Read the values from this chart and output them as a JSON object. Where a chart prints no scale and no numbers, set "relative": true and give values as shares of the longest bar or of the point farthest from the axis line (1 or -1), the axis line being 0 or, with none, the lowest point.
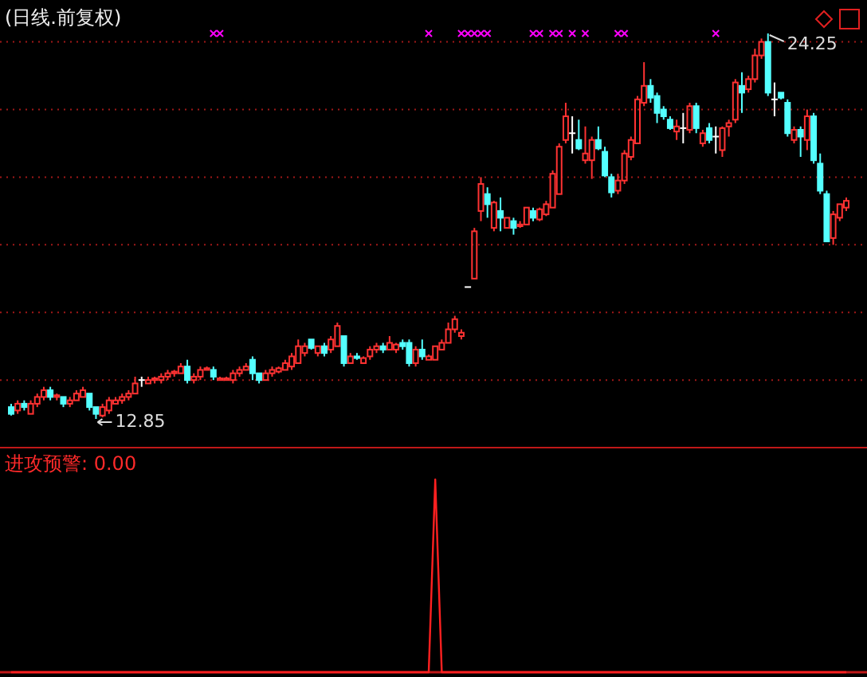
{
  "chart_data": [
    {
      "type": "candlestick",
      "title": "(日线.前复权)",
      "categories": [
        null,
        null,
        null,
        null,
        null,
        null,
        null,
        null,
        null,
        null,
        null,
        null,
        null,
        null,
        null,
        null,
        null,
        null,
        null,
        null,
        null,
        null,
        null,
        null,
        null,
        null,
        null,
        null,
        null,
        null,
        null,
        null,
        null,
        null,
        null,
        null,
        null,
        null,
        null,
        null,
        null,
        null,
        null,
        null,
        null,
        null,
        null,
        null,
        null,
        null,
        null,
        null,
        null,
        null,
        null,
        null,
        null,
        null,
        null,
        null,
        null,
        null,
        null,
        null,
        null,
        null,
        null,
        null,
        null,
        null,
        null,
        null,
        null,
        null,
        null,
        null,
        null,
        null,
        null,
        null,
        null,
        null,
        null,
        null,
        null,
        null,
        null,
        null,
        null,
        null,
        null,
        null,
        null,
        null,
        null,
        null,
        null,
        null,
        null,
        null,
        null,
        null,
        null,
        null,
        null,
        null,
        null,
        null,
        null,
        null,
        null,
        null,
        null,
        null,
        null,
        null,
        null,
        null,
        null,
        null,
        null,
        null,
        null,
        null,
        null,
        null,
        null,
        null,
        null
      ],
      "ohlc": [
        [
          13.2,
          13.3,
          12.95,
          13.0
        ],
        [
          13.1,
          13.4,
          13.0,
          13.3
        ],
        [
          13.3,
          13.4,
          13.1,
          13.2
        ],
        [
          13.0,
          13.4,
          13.0,
          13.3
        ],
        [
          13.3,
          13.6,
          13.2,
          13.5
        ],
        [
          13.5,
          13.8,
          13.4,
          13.7
        ],
        [
          13.7,
          13.8,
          13.4,
          13.5
        ],
        [
          13.5,
          13.6,
          13.4,
          13.55
        ],
        [
          13.5,
          13.5,
          13.2,
          13.3
        ],
        [
          13.3,
          13.5,
          13.2,
          13.4
        ],
        [
          13.4,
          13.7,
          13.4,
          13.6
        ],
        [
          13.5,
          13.8,
          13.5,
          13.7
        ],
        [
          13.6,
          13.6,
          13.1,
          13.2
        ],
        [
          13.2,
          13.2,
          12.85,
          13.0
        ],
        [
          12.95,
          13.3,
          12.9,
          13.2
        ],
        [
          13.1,
          13.5,
          13.0,
          13.4
        ],
        [
          13.3,
          13.5,
          13.3,
          13.4
        ],
        [
          13.4,
          13.6,
          13.3,
          13.5
        ],
        [
          13.5,
          13.7,
          13.4,
          13.6
        ],
        [
          13.6,
          14.1,
          13.6,
          13.9
        ],
        [
          14.0,
          14.1,
          13.8,
          14.0
        ],
        [
          13.9,
          14.1,
          13.9,
          14.0
        ],
        [
          14.0,
          14.1,
          13.9,
          14.05
        ],
        [
          14.0,
          14.2,
          13.9,
          14.1
        ],
        [
          14.1,
          14.3,
          14.0,
          14.2
        ],
        [
          14.2,
          14.3,
          14.1,
          14.25
        ],
        [
          14.2,
          14.5,
          14.2,
          14.4
        ],
        [
          14.4,
          14.6,
          13.9,
          14.0
        ],
        [
          14.0,
          14.2,
          13.9,
          14.1
        ],
        [
          14.1,
          14.4,
          14.0,
          14.3
        ],
        [
          14.3,
          14.4,
          14.3,
          14.35
        ],
        [
          14.3,
          14.4,
          14.0,
          14.1
        ],
        [
          14.0,
          14.1,
          14.0,
          14.05
        ],
        [
          14.0,
          14.1,
          14.0,
          14.05
        ],
        [
          14.0,
          14.3,
          13.9,
          14.2
        ],
        [
          14.2,
          14.4,
          14.1,
          14.3
        ],
        [
          14.3,
          14.5,
          14.3,
          14.4
        ],
        [
          14.6,
          14.7,
          14.0,
          14.2
        ],
        [
          14.2,
          14.2,
          13.9,
          14.0
        ],
        [
          14.0,
          14.3,
          14.0,
          14.2
        ],
        [
          14.2,
          14.4,
          14.1,
          14.3
        ],
        [
          14.25,
          14.4,
          14.2,
          14.35
        ],
        [
          14.3,
          14.6,
          14.3,
          14.5
        ],
        [
          14.4,
          14.8,
          14.3,
          14.7
        ],
        [
          14.5,
          15.2,
          14.5,
          15.0
        ],
        [
          14.8,
          15.1,
          14.7,
          15.0
        ],
        [
          15.2,
          15.2,
          14.9,
          14.95
        ],
        [
          14.8,
          15.0,
          14.7,
          15.0
        ],
        [
          15.0,
          15.1,
          14.7,
          14.8
        ],
        [
          14.9,
          15.3,
          14.8,
          15.2
        ],
        [
          15.0,
          15.7,
          15.0,
          15.6
        ],
        [
          15.3,
          15.3,
          14.4,
          14.5
        ],
        [
          14.5,
          14.8,
          14.5,
          14.7
        ],
        [
          14.7,
          14.8,
          14.6,
          14.65
        ],
        [
          14.5,
          14.7,
          14.5,
          14.65
        ],
        [
          14.7,
          15.0,
          14.6,
          14.9
        ],
        [
          14.9,
          15.1,
          14.8,
          15.0
        ],
        [
          15.0,
          15.1,
          14.8,
          14.9
        ],
        [
          14.9,
          15.3,
          14.9,
          15.1
        ],
        [
          14.9,
          15.1,
          14.8,
          15.05
        ],
        [
          15.1,
          15.2,
          14.9,
          15.0
        ],
        [
          15.1,
          15.2,
          14.4,
          14.5
        ],
        [
          14.5,
          15.0,
          14.4,
          14.9
        ],
        [
          14.9,
          15.2,
          14.6,
          14.7
        ],
        [
          14.6,
          14.75,
          14.6,
          14.7
        ],
        [
          14.6,
          15.0,
          14.6,
          15.0
        ],
        [
          14.9,
          15.2,
          14.9,
          15.1
        ],
        [
          15.1,
          15.7,
          15.1,
          15.5
        ],
        [
          15.5,
          15.9,
          15.4,
          15.8
        ],
        [
          15.3,
          15.5,
          15.2,
          15.4
        ],
        [
          16.75,
          16.75,
          16.75,
          16.75
        ],
        [
          17.0,
          18.5,
          17.0,
          18.4
        ],
        [
          19.0,
          20.0,
          18.7,
          19.8
        ],
        [
          19.5,
          19.7,
          18.8,
          19.2
        ],
        [
          18.5,
          19.3,
          18.4,
          19.25
        ],
        [
          19.0,
          19.4,
          18.4,
          18.8
        ],
        [
          18.5,
          18.8,
          18.5,
          18.8
        ],
        [
          18.7,
          18.8,
          18.3,
          18.5
        ],
        [
          18.55,
          18.7,
          18.5,
          18.6
        ],
        [
          18.6,
          19.1,
          18.6,
          19.1
        ],
        [
          19.0,
          19.1,
          18.7,
          18.8
        ],
        [
          18.75,
          19.1,
          18.7,
          19.05
        ],
        [
          18.9,
          19.3,
          18.85,
          19.2
        ],
        [
          19.1,
          20.2,
          19.1,
          20.1
        ],
        [
          19.5,
          21.0,
          19.5,
          20.9
        ],
        [
          21.1,
          22.2,
          21.0,
          21.8
        ],
        [
          21.3,
          21.8,
          20.7,
          21.3
        ],
        [
          21.1,
          21.7,
          20.8,
          20.85
        ],
        [
          20.5,
          21.5,
          20.4,
          20.7
        ],
        [
          20.5,
          21.2,
          19.95,
          21.1
        ],
        [
          21.1,
          21.5,
          20.8,
          20.85
        ],
        [
          20.75,
          20.9,
          20.0,
          20.05
        ],
        [
          20.0,
          20.1,
          19.4,
          19.55
        ],
        [
          19.6,
          20.1,
          19.5,
          19.9
        ],
        [
          19.9,
          20.8,
          19.8,
          20.7
        ],
        [
          20.6,
          21.2,
          20.5,
          21.1
        ],
        [
          21.0,
          22.4,
          21.0,
          22.3
        ],
        [
          22.2,
          23.4,
          22.1,
          22.7
        ],
        [
          22.7,
          22.9,
          22.2,
          22.35
        ],
        [
          22.4,
          22.5,
          21.6,
          21.9
        ],
        [
          22.0,
          22.1,
          21.7,
          21.8
        ],
        [
          21.7,
          21.8,
          21.4,
          21.45
        ],
        [
          21.35,
          21.7,
          21.1,
          21.5
        ],
        [
          21.45,
          21.9,
          21.0,
          21.45
        ],
        [
          21.4,
          22.2,
          21.3,
          22.1
        ],
        [
          22.1,
          22.2,
          21.3,
          21.45
        ],
        [
          21.0,
          21.4,
          20.9,
          21.3
        ],
        [
          21.45,
          21.6,
          21.0,
          21.1
        ],
        [
          21.2,
          21.5,
          20.7,
          21.2
        ],
        [
          20.8,
          21.5,
          20.6,
          21.45
        ],
        [
          21.5,
          21.7,
          21.2,
          21.6
        ],
        [
          21.7,
          22.9,
          21.6,
          22.8
        ],
        [
          22.7,
          23.1,
          21.9,
          22.5
        ],
        [
          22.6,
          23.0,
          22.5,
          22.9
        ],
        [
          22.9,
          23.8,
          22.8,
          23.6
        ],
        [
          23.6,
          24.1,
          23.5,
          24.0
        ],
        [
          24.0,
          24.25,
          22.4,
          22.5
        ],
        [
          22.3,
          22.8,
          21.8,
          22.3
        ],
        [
          22.5,
          22.5,
          22.3,
          22.35
        ],
        [
          22.2,
          22.3,
          21.2,
          21.3
        ],
        [
          21.1,
          21.5,
          21.0,
          21.4
        ],
        [
          21.4,
          21.5,
          20.6,
          21.2
        ],
        [
          21.1,
          22.0,
          20.8,
          21.8
        ],
        [
          21.8,
          21.9,
          20.4,
          20.5
        ],
        [
          20.4,
          20.7,
          19.5,
          19.6
        ],
        [
          19.5,
          19.6,
          18.1,
          18.1
        ],
        [
          18.2,
          19.0,
          18.0,
          18.9
        ],
        [
          18.8,
          19.2,
          18.7,
          19.2
        ],
        [
          19.1,
          19.4,
          19.0,
          19.3
        ]
      ],
      "series": [
        {
          "type": "scatter",
          "marker": "cross",
          "color": "#ff00ff",
          "values": [
            null,
            null,
            null,
            null,
            null,
            null,
            null,
            null,
            null,
            null,
            null,
            null,
            null,
            null,
            null,
            null,
            null,
            null,
            null,
            null,
            null,
            null,
            null,
            null,
            null,
            null,
            null,
            null,
            null,
            null,
            null,
            24.25,
            24.25,
            null,
            null,
            null,
            null,
            null,
            null,
            null,
            null,
            null,
            null,
            null,
            null,
            null,
            null,
            null,
            null,
            null,
            null,
            null,
            null,
            null,
            null,
            null,
            null,
            null,
            null,
            null,
            null,
            null,
            null,
            null,
            24.25,
            null,
            null,
            null,
            null,
            24.25,
            24.25,
            24.25,
            24.25,
            24.25,
            null,
            null,
            null,
            null,
            null,
            null,
            24.25,
            24.25,
            null,
            24.25,
            24.25,
            null,
            24.25,
            null,
            24.25,
            null,
            null,
            null,
            null,
            24.25,
            24.25,
            null,
            null,
            null,
            null,
            null,
            null,
            null,
            null,
            null,
            null,
            null,
            null,
            null,
            24.25,
            null,
            null,
            null,
            null,
            null,
            null,
            null,
            null,
            null,
            null,
            null,
            null,
            null,
            null,
            null,
            null,
            null,
            null,
            null,
            null
          ]
        }
      ],
      "yticks": [
        {
          "value": 14,
          "label": null
        },
        {
          "value": 16,
          "label": null
        },
        {
          "value": 18,
          "label": null
        },
        {
          "value": 20,
          "label": null
        },
        {
          "value": 22,
          "label": null
        },
        {
          "value": 24,
          "label": null
        }
      ],
      "grid": "y",
      "annotations": [
        "24.25",
        "12.85"
      ]
    },
    {
      "type": "line",
      "title": "进攻预警: 0.00",
      "relative": true,
      "categories": [
        null,
        null,
        null,
        null,
        null,
        null,
        null,
        null,
        null,
        null,
        null,
        null,
        null,
        null,
        null,
        null,
        null,
        null,
        null,
        null,
        null,
        null,
        null,
        null,
        null,
        null,
        null,
        null,
        null,
        null,
        null,
        null,
        null,
        null,
        null,
        null,
        null,
        null,
        null,
        null,
        null,
        null,
        null,
        null,
        null,
        null,
        null,
        null,
        null,
        null,
        null,
        null,
        null,
        null,
        null,
        null,
        null,
        null,
        null,
        null,
        null,
        null,
        null,
        null,
        null,
        null,
        null,
        null,
        null,
        null,
        null,
        null,
        null,
        null,
        null,
        null,
        null,
        null,
        null,
        null,
        null,
        null,
        null,
        null,
        null,
        null,
        null,
        null,
        null,
        null,
        null,
        null,
        null,
        null,
        null,
        null,
        null,
        null,
        null,
        null,
        null,
        null,
        null,
        null,
        null,
        null,
        null,
        null,
        null,
        null,
        null,
        null,
        null,
        null,
        null,
        null,
        null,
        null,
        null,
        null,
        null,
        null,
        null,
        null,
        null,
        null,
        null,
        null,
        null
      ],
      "series": [
        {
          "color": "#ff2020",
          "values": [
            0,
            0,
            0,
            0,
            0,
            0,
            0,
            0,
            0,
            0,
            0,
            0,
            0,
            0,
            0,
            0,
            0,
            0,
            0,
            0,
            0,
            0,
            0,
            0,
            0,
            0,
            0,
            0,
            0,
            0,
            0,
            0,
            0,
            0,
            0,
            0,
            0,
            0,
            0,
            0,
            0,
            0,
            0,
            0,
            0,
            0,
            0,
            0,
            0,
            0,
            0,
            0,
            0,
            0,
            0,
            0,
            0,
            0,
            0,
            0,
            0,
            0,
            0,
            0,
            0,
            1,
            0,
            0,
            0,
            0,
            0,
            0,
            0,
            0,
            0,
            0,
            0,
            0,
            0,
            0,
            0,
            0,
            0,
            0,
            0,
            0,
            0,
            0,
            0,
            0,
            0,
            0,
            0,
            0,
            0,
            0,
            0,
            0,
            0,
            0,
            0,
            0,
            0,
            0,
            0,
            0,
            0,
            0,
            0,
            0,
            0,
            0,
            0,
            0,
            0,
            0,
            0,
            0,
            0,
            0,
            0,
            0,
            0,
            0,
            0,
            0,
            0,
            0,
            0
          ]
        }
      ]
    }
  ]
}
